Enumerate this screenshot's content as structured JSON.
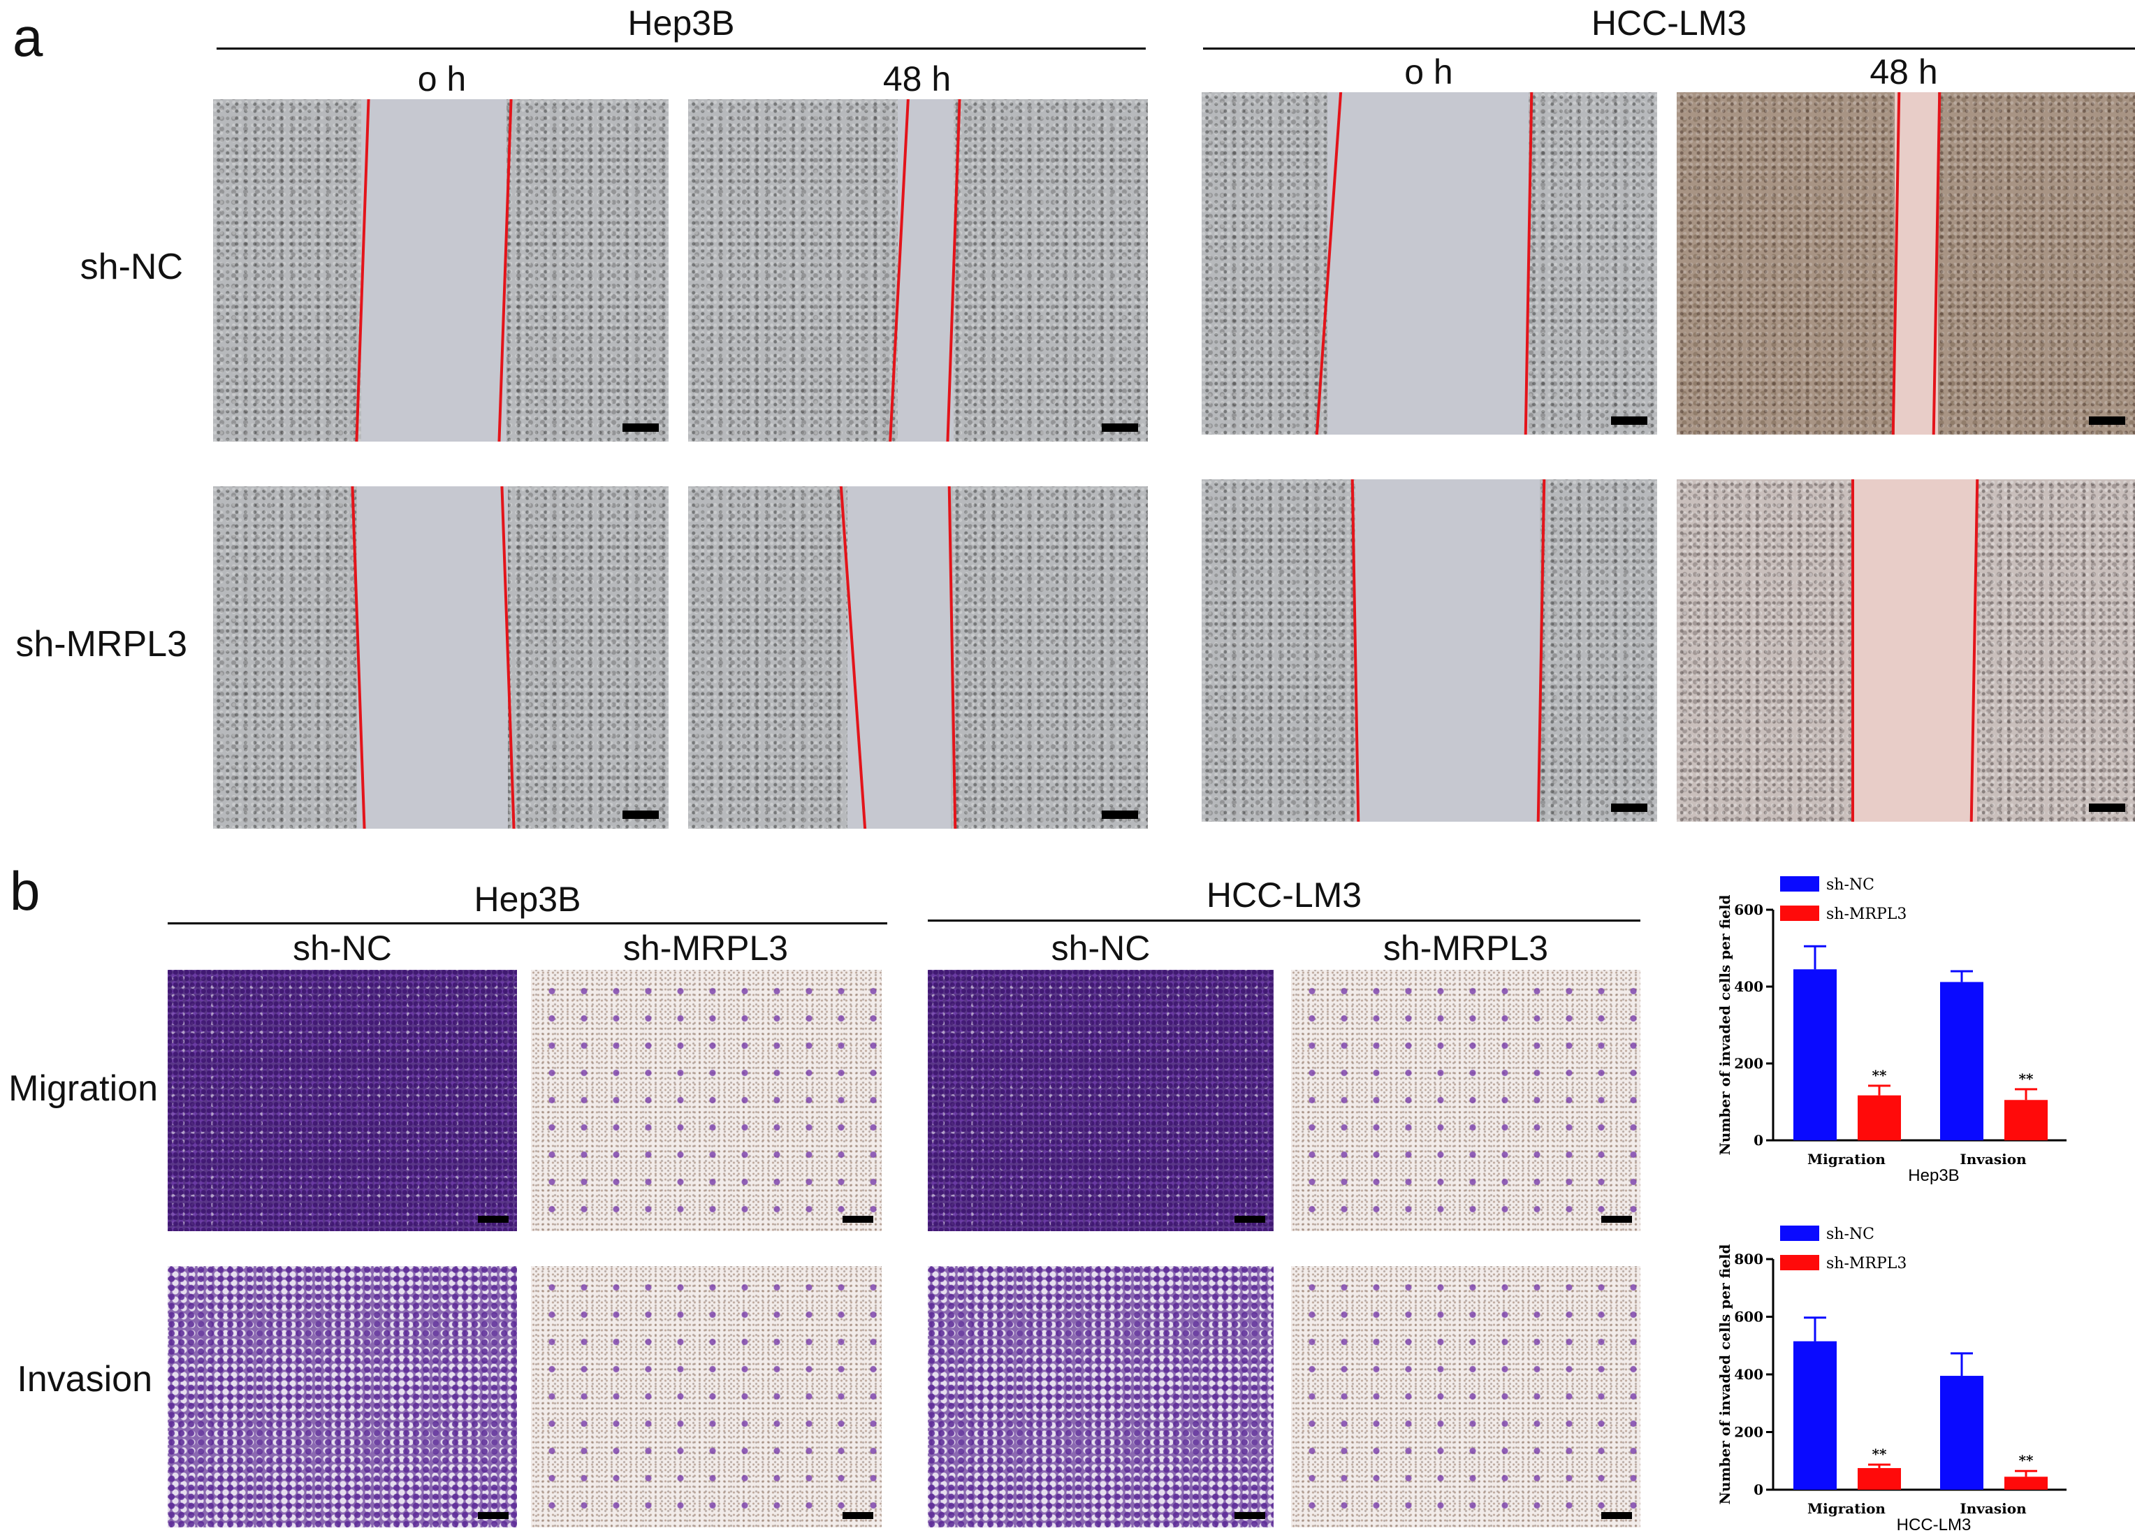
{
  "panel_a": {
    "letter": "a",
    "groups": [
      "Hep3B",
      "HCC-LM3"
    ],
    "timepoints": [
      "o h",
      "48 h",
      "o h",
      "48 h"
    ],
    "rows": [
      "sh-NC",
      "sh-MRPL3"
    ],
    "edge_color": "#e3141a"
  },
  "panel_b": {
    "letter": "b",
    "groups": [
      "Hep3B",
      "HCC-LM3"
    ],
    "conditions": [
      "sh-NC",
      "sh-MRPL3",
      "sh-NC",
      "sh-MRPL3"
    ],
    "rows": [
      "Migration",
      "Invasion"
    ],
    "stain_color": "#5a3788"
  },
  "chart_data": [
    {
      "type": "bar",
      "title": "",
      "ylabel": "Number of invaded cells per field",
      "xlabel": "Hep3B",
      "categories": [
        "Migration",
        "Invasion"
      ],
      "ylim": [
        0,
        600
      ],
      "yticks": [
        "0",
        "200",
        "400",
        "600"
      ],
      "series": [
        {
          "name": "sh-NC",
          "color": "#0a0aff",
          "values": [
            445,
            412
          ],
          "errors": [
            60,
            28
          ]
        },
        {
          "name": "sh-MRPL3",
          "color": "#ff0a0a",
          "values": [
            117,
            105
          ],
          "errors": [
            25,
            28
          ]
        }
      ],
      "significance": [
        "**",
        "**"
      ]
    },
    {
      "type": "bar",
      "title": "",
      "ylabel": "Number of invaded cells per field",
      "xlabel": "HCC-LM3",
      "categories": [
        "Migration",
        "Invasion"
      ],
      "ylim": [
        0,
        800
      ],
      "yticks": [
        "0",
        "200",
        "400",
        "600",
        "800"
      ],
      "series": [
        {
          "name": "sh-NC",
          "color": "#0a0aff",
          "values": [
            515,
            395
          ],
          "errors": [
            82,
            78
          ]
        },
        {
          "name": "sh-MRPL3",
          "color": "#ff0a0a",
          "values": [
            75,
            45
          ],
          "errors": [
            12,
            20
          ]
        }
      ],
      "significance": [
        "**",
        "**"
      ]
    }
  ]
}
